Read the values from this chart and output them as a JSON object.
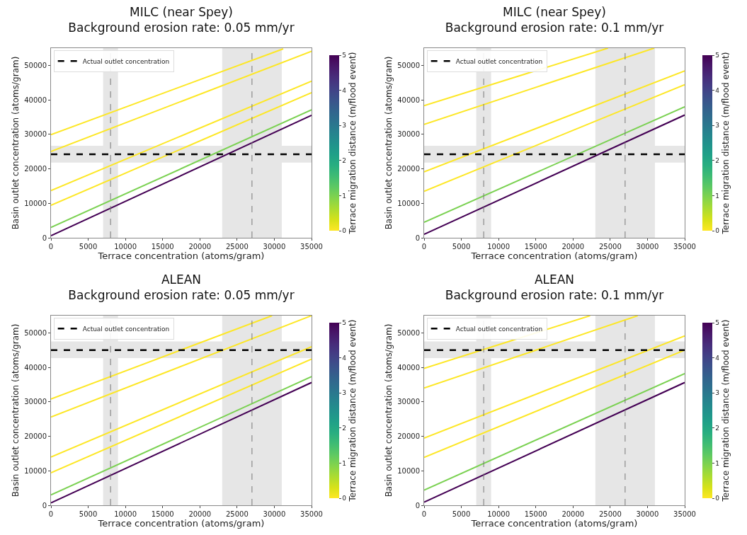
{
  "chart_data": [
    {
      "type": "line",
      "title": "MILC (near Spey)",
      "subtitle": "Background erosion rate: 0.05 mm/yr",
      "xlabel": "Terrace concentration (atoms/gram)",
      "ylabel": "Basin outlet concentration (atoms/gram)",
      "clabel": "Terrace migration distance (m/flood event)",
      "clim": [
        0,
        5
      ],
      "cticks": [
        0,
        1,
        2,
        3,
        4,
        5
      ],
      "xlim": [
        0,
        35000
      ],
      "ylim": [
        0,
        55000
      ],
      "xticks": [
        0,
        5000,
        10000,
        15000,
        20000,
        25000,
        30000,
        35000
      ],
      "yticks": [
        0,
        10000,
        20000,
        30000,
        40000,
        50000
      ],
      "grid": false,
      "legend": "top left",
      "series": [
        {
          "color": "#440154",
          "x": [
            0,
            35000
          ],
          "values": [
            600,
            35500
          ]
        },
        {
          "color": "#7ad151",
          "x": [
            0,
            35000
          ],
          "values": [
            3000,
            37100
          ]
        },
        {
          "color": "#fde725",
          "x": [
            0,
            35000
          ],
          "values": [
            9400,
            42100
          ]
        },
        {
          "color": "#fde725",
          "x": [
            0,
            35000
          ],
          "values": [
            13700,
            45400
          ]
        },
        {
          "color": "#fde725",
          "x": [
            0,
            35000
          ],
          "values": [
            25000,
            54100
          ]
        },
        {
          "color": "#fde725",
          "x": [
            0,
            31200
          ],
          "values": [
            29900,
            54800
          ]
        }
      ],
      "ref_lines": [
        {
          "axis": "y",
          "value": 24200,
          "label": "Actual outlet concentration",
          "color": "#000000",
          "line_style": "dashed"
        },
        {
          "axis": "x",
          "value": 8000,
          "color": "#777777",
          "line_style": "dashed"
        },
        {
          "axis": "x",
          "value": 27000,
          "color": "#777777",
          "line_style": "dashed"
        }
      ],
      "bands": [
        {
          "axis": "y",
          "from": 21800,
          "to": 26700,
          "color": "#e6e6e6"
        },
        {
          "axis": "x",
          "from": 7000,
          "to": 9000,
          "color": "#e6e6e6"
        },
        {
          "axis": "x",
          "from": 23000,
          "to": 31000,
          "color": "#e6e6e6"
        }
      ]
    },
    {
      "type": "line",
      "title": "MILC (near Spey)",
      "subtitle": "Background erosion rate: 0.1 mm/yr",
      "xlabel": "Terrace concentration (atoms/gram)",
      "ylabel": "Basin outlet concentration (atoms/gram)",
      "clabel": "Terrace migration distance (m/flood event)",
      "clim": [
        0,
        5
      ],
      "cticks": [
        0,
        1,
        2,
        3,
        4,
        5
      ],
      "xlim": [
        0,
        35000
      ],
      "ylim": [
        0,
        55000
      ],
      "xticks": [
        0,
        5000,
        10000,
        15000,
        20000,
        25000,
        30000,
        35000
      ],
      "yticks": [
        0,
        10000,
        20000,
        30000,
        40000,
        50000
      ],
      "grid": false,
      "legend": "top left",
      "series": [
        {
          "color": "#440154",
          "x": [
            0,
            35000
          ],
          "values": [
            1000,
            35600
          ]
        },
        {
          "color": "#7ad151",
          "x": [
            0,
            35000
          ],
          "values": [
            4500,
            38000
          ]
        },
        {
          "color": "#fde725",
          "x": [
            0,
            35000
          ],
          "values": [
            13500,
            44400
          ]
        },
        {
          "color": "#fde725",
          "x": [
            0,
            35000
          ],
          "values": [
            19100,
            48400
          ]
        },
        {
          "color": "#fde725",
          "x": [
            0,
            30900
          ],
          "values": [
            32900,
            55000
          ]
        },
        {
          "color": "#fde725",
          "x": [
            0,
            24700
          ],
          "values": [
            38300,
            55000
          ]
        }
      ],
      "ref_lines": [
        {
          "axis": "y",
          "value": 24200,
          "label": "Actual outlet concentration",
          "color": "#000000",
          "line_style": "dashed"
        },
        {
          "axis": "x",
          "value": 8000,
          "color": "#777777",
          "line_style": "dashed"
        },
        {
          "axis": "x",
          "value": 27000,
          "color": "#777777",
          "line_style": "dashed"
        }
      ],
      "bands": [
        {
          "axis": "y",
          "from": 21800,
          "to": 26700,
          "color": "#e6e6e6"
        },
        {
          "axis": "x",
          "from": 7000,
          "to": 9000,
          "color": "#e6e6e6"
        },
        {
          "axis": "x",
          "from": 23000,
          "to": 31000,
          "color": "#e6e6e6"
        }
      ]
    },
    {
      "type": "line",
      "title": "ALEAN",
      "subtitle": "Background erosion rate: 0.05 mm/yr",
      "xlabel": "Terrace concentration (atoms/gram)",
      "ylabel": "Basin outlet concentration (atoms/gram)",
      "clabel": "Terrace migration distance (m/flood event)",
      "clim": [
        0,
        5
      ],
      "cticks": [
        0,
        1,
        2,
        3,
        4,
        5
      ],
      "xlim": [
        0,
        35000
      ],
      "ylim": [
        0,
        55000
      ],
      "xticks": [
        0,
        5000,
        10000,
        15000,
        20000,
        25000,
        30000,
        35000
      ],
      "yticks": [
        0,
        10000,
        20000,
        30000,
        40000,
        50000
      ],
      "grid": false,
      "legend": "top left",
      "series": [
        {
          "color": "#440154",
          "x": [
            0,
            35000
          ],
          "values": [
            700,
            35600
          ]
        },
        {
          "color": "#7ad151",
          "x": [
            0,
            35000
          ],
          "values": [
            3000,
            37300
          ]
        },
        {
          "color": "#fde725",
          "x": [
            0,
            35000
          ],
          "values": [
            9400,
            42400
          ]
        },
        {
          "color": "#fde725",
          "x": [
            0,
            35000
          ],
          "values": [
            14000,
            46000
          ]
        },
        {
          "color": "#fde725",
          "x": [
            0,
            35000
          ],
          "values": [
            25600,
            55000
          ]
        },
        {
          "color": "#fde725",
          "x": [
            0,
            29700
          ],
          "values": [
            30800,
            55000
          ]
        }
      ],
      "ref_lines": [
        {
          "axis": "y",
          "value": 45000,
          "label": "Actual outlet concentration",
          "color": "#000000",
          "line_style": "dashed"
        },
        {
          "axis": "x",
          "value": 8000,
          "color": "#777777",
          "line_style": "dashed"
        },
        {
          "axis": "x",
          "value": 27000,
          "color": "#777777",
          "line_style": "dashed"
        }
      ],
      "bands": [
        {
          "axis": "y",
          "from": 42700,
          "to": 47500,
          "color": "#e6e6e6"
        },
        {
          "axis": "x",
          "from": 7000,
          "to": 9000,
          "color": "#e6e6e6"
        },
        {
          "axis": "x",
          "from": 23000,
          "to": 31000,
          "color": "#e6e6e6"
        }
      ]
    },
    {
      "type": "line",
      "title": "ALEAN",
      "subtitle": "Background erosion rate: 0.1 mm/yr",
      "xlabel": "Terrace concentration (atoms/gram)",
      "ylabel": "Basin outlet concentration (atoms/gram)",
      "clabel": "Terrace migration distance (m/flood event)",
      "clim": [
        0,
        5
      ],
      "cticks": [
        0,
        1,
        2,
        3,
        4,
        5
      ],
      "xlim": [
        0,
        35000
      ],
      "ylim": [
        0,
        55000
      ],
      "xticks": [
        0,
        5000,
        10000,
        15000,
        20000,
        25000,
        30000,
        35000
      ],
      "yticks": [
        0,
        10000,
        20000,
        30000,
        40000,
        50000
      ],
      "grid": false,
      "legend": "top left",
      "series": [
        {
          "color": "#440154",
          "x": [
            0,
            35000
          ],
          "values": [
            900,
            35600
          ]
        },
        {
          "color": "#7ad151",
          "x": [
            0,
            35000
          ],
          "values": [
            4400,
            38200
          ]
        },
        {
          "color": "#fde725",
          "x": [
            0,
            35000
          ],
          "values": [
            13900,
            45000
          ]
        },
        {
          "color": "#fde725",
          "x": [
            0,
            35000
          ],
          "values": [
            19500,
            49100
          ]
        },
        {
          "color": "#fde725",
          "x": [
            0,
            28700
          ],
          "values": [
            34000,
            55000
          ]
        },
        {
          "color": "#fde725",
          "x": [
            0,
            22300
          ],
          "values": [
            39700,
            55000
          ]
        }
      ],
      "ref_lines": [
        {
          "axis": "y",
          "value": 45000,
          "label": "Actual outlet concentration",
          "color": "#000000",
          "line_style": "dashed"
        },
        {
          "axis": "x",
          "value": 8000,
          "color": "#777777",
          "line_style": "dashed"
        },
        {
          "axis": "x",
          "value": 27000,
          "color": "#777777",
          "line_style": "dashed"
        }
      ],
      "bands": [
        {
          "axis": "y",
          "from": 42700,
          "to": 47500,
          "color": "#e6e6e6"
        },
        {
          "axis": "x",
          "from": 7000,
          "to": 9000,
          "color": "#e6e6e6"
        },
        {
          "axis": "x",
          "from": 23000,
          "to": 31000,
          "color": "#e6e6e6"
        }
      ]
    }
  ]
}
